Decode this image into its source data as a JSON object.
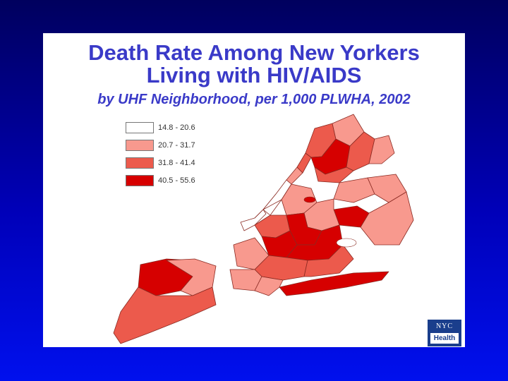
{
  "title_line1": "Death Rate Among New Yorkers",
  "title_line2": "Living with HIV/AIDS",
  "subtitle": "by UHF Neighborhood, per 1,000 PLWHA, 2002",
  "legend": [
    {
      "label": "14.8 - 20.6",
      "color": "#ffffff"
    },
    {
      "label": "20.7 - 31.7",
      "color": "#f8998e"
    },
    {
      "label": "31.8 - 41.4",
      "color": "#ec5a4c"
    },
    {
      "label": "40.5 - 55.6",
      "color": "#d60000"
    }
  ],
  "logo": {
    "top": "NYC",
    "bottom": "Health"
  },
  "colors": {
    "class1": "#ffffff",
    "class2": "#f8998e",
    "class3": "#ec5a4c",
    "class4": "#d60000",
    "border": "#8a2a22",
    "title": "#3a3ac8"
  }
}
